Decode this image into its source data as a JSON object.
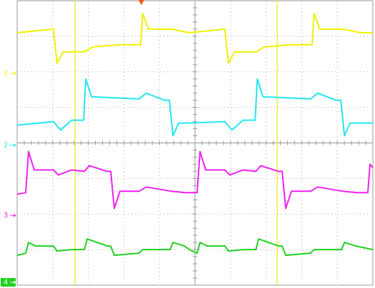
{
  "chart_data": {
    "type": "line",
    "xlim": [
      0,
      10
    ],
    "ylim": [
      0,
      8
    ],
    "xticks": [
      0,
      1,
      2,
      3,
      4,
      5,
      6,
      7,
      8,
      9,
      10
    ],
    "yticks": [
      0,
      1,
      2,
      3,
      4,
      5,
      6,
      7,
      8
    ],
    "grid": true,
    "cursors": [
      1.63,
      7.31
    ],
    "cursor_color": "#f4ea3a",
    "trigger_x": 3.49,
    "trigger_color": "#f05a1e",
    "series": [
      {
        "name": "1",
        "color": "#f0f000",
        "offset": 5.96,
        "x": [
          0,
          1.02,
          1.12,
          1.29,
          1.89,
          2.13,
          2.89,
          3.47,
          3.53,
          3.69,
          4.34,
          4.84,
          5.84,
          5.94,
          6.11,
          6.71,
          6.95,
          7.71,
          8.29,
          8.35,
          8.51,
          9.16,
          9.66,
          10
        ],
        "values": [
          7.1,
          7.2,
          6.24,
          6.56,
          6.56,
          6.7,
          6.76,
          6.76,
          7.64,
          7.2,
          7.2,
          7.1,
          7.2,
          6.24,
          6.56,
          6.56,
          6.7,
          6.76,
          6.76,
          7.64,
          7.2,
          7.2,
          7.1,
          7.1
        ]
      },
      {
        "name": "2",
        "color": "#22e6f0",
        "offset": 3.94,
        "x": [
          0,
          1.02,
          1.22,
          1.53,
          1.87,
          1.93,
          2.09,
          3.43,
          3.63,
          4.14,
          4.28,
          4.38,
          4.54,
          4.84,
          5.84,
          6.04,
          6.35,
          6.69,
          6.75,
          6.91,
          8.25,
          8.45,
          8.96,
          9.1,
          9.2,
          9.36,
          10
        ],
        "values": [
          4.5,
          4.6,
          4.36,
          4.64,
          4.64,
          5.8,
          5.3,
          5.24,
          5.4,
          5.2,
          5.2,
          4.2,
          4.56,
          4.56,
          4.6,
          4.36,
          4.64,
          4.64,
          5.8,
          5.3,
          5.24,
          5.4,
          5.2,
          5.2,
          4.2,
          4.56,
          4.56
        ]
      },
      {
        "name": "3",
        "color": "#f020f0",
        "offset": 1.96,
        "x": [
          0,
          0.24,
          0.32,
          0.48,
          1.02,
          1.16,
          1.53,
          1.89,
          2.03,
          2.53,
          2.63,
          2.73,
          2.89,
          3.43,
          3.63,
          4.34,
          4.74,
          4.84,
          5.06,
          5.14,
          5.3,
          5.84,
          5.98,
          6.35,
          6.71,
          6.85,
          7.35,
          7.45,
          7.55,
          7.71,
          8.25,
          8.45,
          9.16,
          9.56,
          9.86,
          9.92,
          10
        ],
        "values": [
          2.56,
          2.6,
          3.76,
          3.24,
          3.24,
          3.1,
          3.24,
          3.2,
          3.36,
          3.2,
          3.2,
          2.16,
          2.64,
          2.64,
          2.76,
          2.64,
          2.6,
          2.6,
          2.6,
          3.76,
          3.24,
          3.24,
          3.1,
          3.24,
          3.2,
          3.36,
          3.2,
          3.2,
          2.16,
          2.64,
          2.64,
          2.76,
          2.64,
          2.6,
          2.6,
          3.4,
          3.3
        ]
      },
      {
        "name": "4",
        "color": "#20d020",
        "offset": 0.08,
        "x": [
          0,
          0.24,
          0.32,
          0.52,
          1.02,
          1.12,
          1.53,
          1.89,
          1.97,
          2.53,
          2.63,
          2.73,
          3.43,
          3.53,
          4.3,
          4.38,
          4.7,
          4.84,
          5.06,
          5.14,
          5.34,
          5.84,
          5.94,
          6.35,
          6.71,
          6.79,
          7.35,
          7.45,
          7.55,
          8.25,
          8.35,
          9.12,
          9.2,
          9.52,
          10
        ],
        "values": [
          0.84,
          0.9,
          1.2,
          1.1,
          1.1,
          0.96,
          1.0,
          1.0,
          1.3,
          1.1,
          1.1,
          0.84,
          0.9,
          1.0,
          1.0,
          1.2,
          1.1,
          1.0,
          0.9,
          1.2,
          1.1,
          1.1,
          0.96,
          1.0,
          1.0,
          1.3,
          1.1,
          1.1,
          0.84,
          0.9,
          1.0,
          1.0,
          1.2,
          1.1,
          1.0
        ]
      }
    ]
  }
}
